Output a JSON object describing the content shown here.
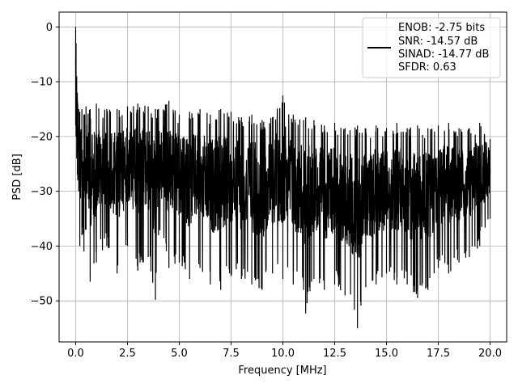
{
  "chart_data": {
    "type": "line",
    "xlabel": "Frequency [MHz]",
    "ylabel": "PSD [dB]",
    "xlim": [
      -0.8,
      20.8
    ],
    "ylim": [
      -57.5,
      2.7
    ],
    "xticks": [
      0.0,
      2.5,
      5.0,
      7.5,
      10.0,
      12.5,
      15.0,
      17.5,
      20.0
    ],
    "xtick_labels": [
      "0.0",
      "2.5",
      "5.0",
      "7.5",
      "10.0",
      "12.5",
      "15.0",
      "17.5",
      "20.0"
    ],
    "yticks": [
      0,
      -10,
      -20,
      -30,
      -40,
      -50
    ],
    "ytick_labels": [
      "0",
      "−10",
      "−20",
      "−30",
      "−40",
      "−50"
    ],
    "grid": true,
    "legend_position": "upper-right",
    "legend_lines": [
      "ENOB: -2.75 bits",
      "SNR: -14.57 dB",
      "SINAD: -14.77 dB",
      "SFDR: 0.63"
    ],
    "series_color": "#000000",
    "series": [
      {
        "x": [
          0.0,
          0.02,
          0.05,
          0.08,
          0.1,
          0.15,
          0.2,
          0.3,
          0.4,
          0.5,
          0.7,
          1.0,
          1.5,
          2.0,
          2.5,
          3.0,
          3.5,
          3.85,
          4.0,
          4.5,
          5.0,
          5.5,
          6.0,
          6.5,
          7.0,
          7.5,
          8.0,
          8.5,
          9.0,
          9.5,
          10.0,
          10.5,
          11.0,
          11.1,
          11.5,
          12.0,
          12.5,
          13.0,
          13.6,
          14.0,
          14.5,
          15.0,
          15.5,
          16.0,
          16.5,
          17.0,
          17.5,
          18.0,
          18.5,
          19.0,
          19.5,
          20.0
        ],
        "psd_high": [
          0.0,
          -3.0,
          -9.0,
          -12.0,
          -14.0,
          -15.0,
          -15.5,
          -15.0,
          -16.0,
          -14.5,
          -15.0,
          -14.0,
          -15.0,
          -15.0,
          -14.5,
          -14.0,
          -14.5,
          -15.0,
          -15.0,
          -13.5,
          -16.0,
          -15.5,
          -15.0,
          -16.0,
          -15.0,
          -15.5,
          -16.5,
          -16.0,
          -17.0,
          -16.5,
          -12.5,
          -16.0,
          -17.0,
          -16.5,
          -17.0,
          -18.0,
          -17.5,
          -18.5,
          -18.0,
          -18.5,
          -18.0,
          -18.5,
          -17.5,
          -18.5,
          -18.0,
          -18.5,
          -18.0,
          -17.5,
          -18.5,
          -18.5,
          -17.5,
          -20.5
        ],
        "psd_low": [
          -18.0,
          -20.0,
          -24.0,
          -27.0,
          -28.0,
          -30.0,
          -40.0,
          -38.0,
          -41.0,
          -37.0,
          -46.5,
          -43.0,
          -40.0,
          -45.0,
          -40.0,
          -44.5,
          -42.0,
          -49.8,
          -38.0,
          -44.0,
          -43.0,
          -46.0,
          -44.0,
          -47.0,
          -48.0,
          -45.5,
          -46.0,
          -47.0,
          -48.0,
          -45.0,
          -46.0,
          -47.0,
          -48.0,
          -52.3,
          -46.0,
          -48.0,
          -47.0,
          -49.0,
          -55.0,
          -47.5,
          -47.0,
          -45.0,
          -47.0,
          -47.0,
          -49.5,
          -48.0,
          -44.0,
          -45.0,
          -43.0,
          -42.0,
          -40.0,
          -35.0
        ]
      }
    ]
  }
}
